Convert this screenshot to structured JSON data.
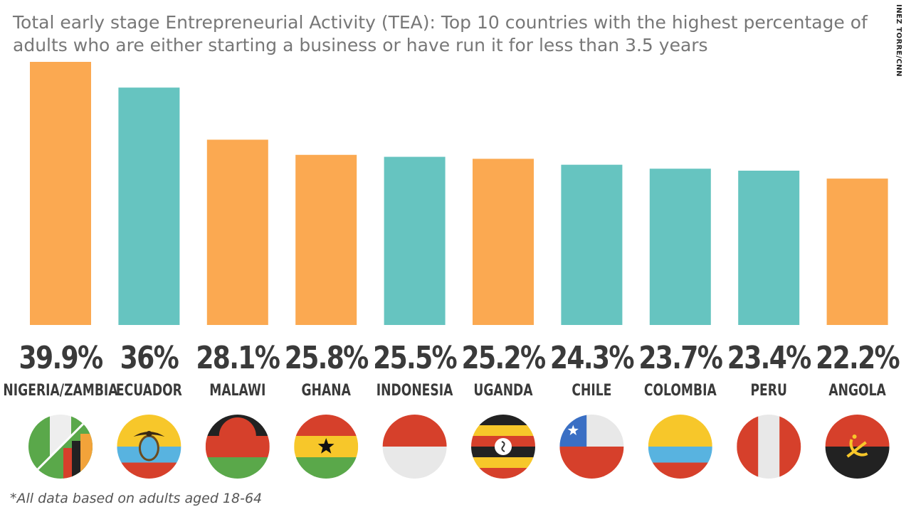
{
  "credit": "INEZ TORRE/CNN",
  "footnote": "*All data based on adults aged 18-64",
  "colors": {
    "orange": "#fba951",
    "teal": "#66c4c0",
    "text": "#3a3a3a"
  },
  "chart_data": {
    "type": "bar",
    "title": "Total early stage Entrepreneurial Activity (TEA): Top 10 countries with the highest percentage of adults who are either starting a business or have run it for less than 3.5 years",
    "categories": [
      "NIGERIA/ZAMBIA",
      "ECUADOR",
      "MALAWI",
      "GHANA",
      "INDONESIA",
      "UGANDA",
      "CHILE",
      "COLOMBIA",
      "PERU",
      "ANGOLA"
    ],
    "values": [
      39.9,
      36,
      28.1,
      25.8,
      25.5,
      25.2,
      24.3,
      23.7,
      23.4,
      22.2
    ],
    "value_labels": [
      "39.9%",
      "36%",
      "28.1%",
      "25.8%",
      "25.5%",
      "25.2%",
      "24.3%",
      "23.7%",
      "23.4%",
      "22.2%"
    ],
    "bar_colors": [
      "orange",
      "teal",
      "orange",
      "orange",
      "teal",
      "orange",
      "teal",
      "teal",
      "teal",
      "orange"
    ],
    "flags": [
      "nigeria-zambia-flag-icon",
      "ecuador-flag-icon",
      "malawi-flag-icon",
      "ghana-flag-icon",
      "indonesia-flag-icon",
      "uganda-flag-icon",
      "chile-flag-icon",
      "colombia-flag-icon",
      "peru-flag-icon",
      "angola-flag-icon"
    ],
    "xlabel": "",
    "ylabel": "",
    "grid": false
  }
}
